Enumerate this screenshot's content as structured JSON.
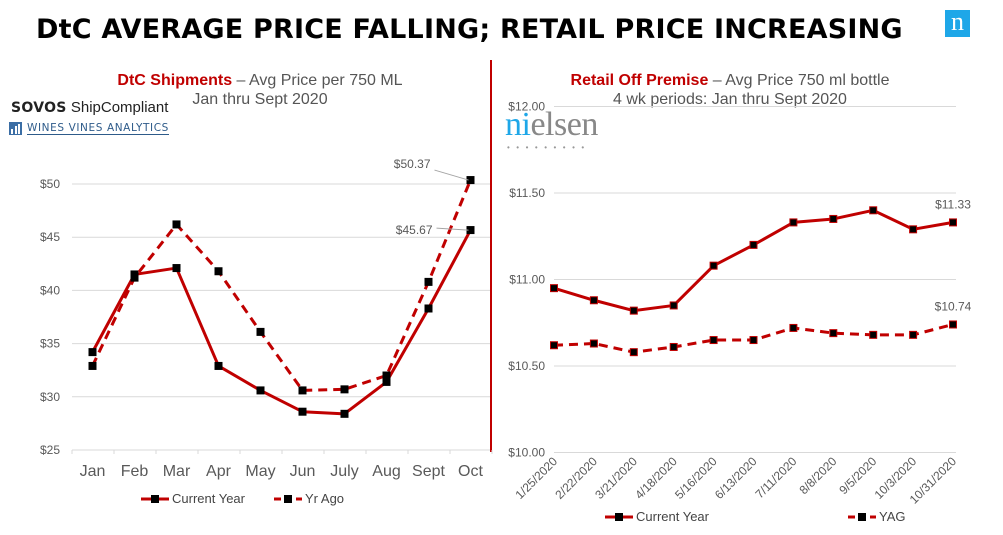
{
  "page": {
    "title": "DtC AVERAGE PRICE FALLING; RETAIL PRICE INCREASING",
    "brand_logo_letter": "n"
  },
  "logos": {
    "sovos_bold": "SOVOS",
    "sovos_rest": "ShipCompliant",
    "wva": "WINES VINES ANALYTICS",
    "nielsen_first": "ni",
    "nielsen_rest": "elsen",
    "nielsen_dots": "•••••••••"
  },
  "colors": {
    "series": "#c00000",
    "marker": "#000000",
    "grid": "#d9d9d9",
    "axis_text": "#595959",
    "brand_blue": "#1ea7e8"
  },
  "chart_data": [
    {
      "type": "line",
      "title_highlight": "DtC Shipments",
      "title_rest": " – Avg Price per 750 ML",
      "subtitle": "Jan thru Sept 2020",
      "xlabel": "",
      "ylabel": "",
      "categories": [
        "Jan",
        "Feb",
        "Mar",
        "Apr",
        "May",
        "Jun",
        "July",
        "Aug",
        "Sept",
        "Oct"
      ],
      "ylim": [
        25,
        50
      ],
      "yticks": [
        25,
        30,
        35,
        40,
        45,
        50
      ],
      "ytick_labels": [
        "$25",
        "$30",
        "$35",
        "$40",
        "$45",
        "$50"
      ],
      "grid": true,
      "legend_position": "bottom",
      "series": [
        {
          "name": "Current Year",
          "style": "solid",
          "values": [
            34.2,
            41.5,
            42.1,
            32.9,
            30.6,
            28.6,
            28.4,
            31.4,
            38.3,
            45.67
          ]
        },
        {
          "name": "Yr Ago",
          "style": "dashed",
          "values": [
            32.9,
            41.2,
            46.2,
            41.8,
            36.1,
            30.6,
            30.7,
            32.0,
            40.8,
            50.37
          ]
        }
      ],
      "annotations": [
        {
          "series": 0,
          "index": 9,
          "text": "$45.67",
          "placement": "left"
        },
        {
          "series": 1,
          "index": 9,
          "text": "$50.37",
          "placement": "above-left"
        }
      ]
    },
    {
      "type": "line",
      "title_highlight": "Retail Off Premise",
      "title_rest": " – Avg Price 750 ml bottle",
      "subtitle": "4 wk periods: Jan thru Sept 2020",
      "xlabel": "",
      "ylabel": "",
      "categories": [
        "1/25/2020",
        "2/22/2020",
        "3/21/2020",
        "4/18/2020",
        "5/16/2020",
        "6/13/2020",
        "7/11/2020",
        "8/8/2020",
        "9/5/2020",
        "10/3/2020",
        "10/31/2020"
      ],
      "ylim": [
        10.0,
        12.0
      ],
      "yticks": [
        10.0,
        10.5,
        11.0,
        11.5,
        12.0
      ],
      "ytick_labels": [
        "$10.00",
        "$10.50",
        "$11.00",
        "$11.50",
        "$12.00"
      ],
      "grid": true,
      "legend_position": "bottom",
      "series": [
        {
          "name": "Current Year",
          "style": "solid",
          "values": [
            10.95,
            10.88,
            10.82,
            10.85,
            11.08,
            11.2,
            11.33,
            11.35,
            11.4,
            11.29,
            11.33
          ]
        },
        {
          "name": "YAG",
          "style": "dashed",
          "values": [
            10.62,
            10.63,
            10.58,
            10.61,
            10.65,
            10.65,
            10.72,
            10.69,
            10.68,
            10.68,
            10.74
          ]
        }
      ],
      "annotations": [
        {
          "series": 0,
          "index": 10,
          "text": "$11.33",
          "placement": "above"
        },
        {
          "series": 1,
          "index": 10,
          "text": "$10.74",
          "placement": "above"
        }
      ]
    }
  ]
}
